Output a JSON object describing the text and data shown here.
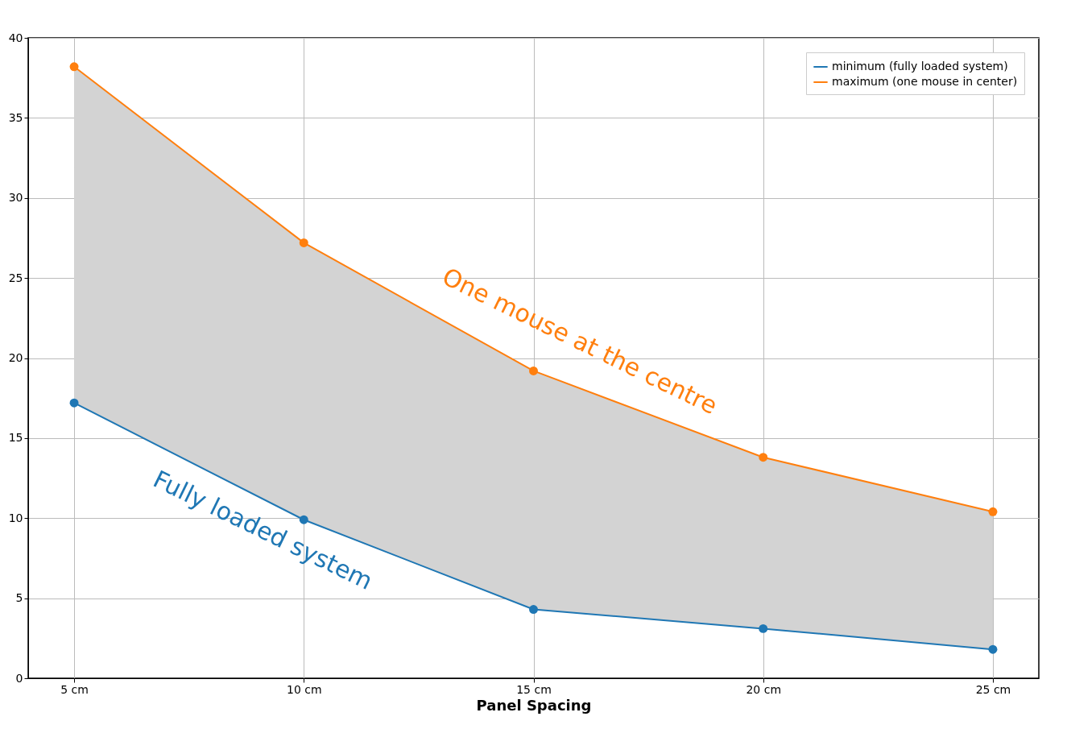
{
  "chart_data": {
    "type": "line",
    "xlabel": "Panel Spacing",
    "categories": [
      "5 cm",
      "10 cm",
      "15 cm",
      "20 cm",
      "25 cm"
    ],
    "series": [
      {
        "name": "minimum (fully loaded system)",
        "color": "#1f77b4",
        "values": [
          17.2,
          9.9,
          4.3,
          3.1,
          1.8
        ]
      },
      {
        "name": "maximum (one mouse in center)",
        "color": "#ff7f0e",
        "values": [
          38.2,
          27.2,
          19.2,
          13.8,
          10.4
        ],
        "lower": [
          17.2,
          9.9,
          4.3,
          3.1,
          1.8
        ],
        "upper": [
          38.2,
          27.2,
          19.2,
          13.8,
          10.4
        ]
      }
    ],
    "annotations": [
      "Fully loaded system",
      "One mouse at the centre"
    ],
    "ylim": [
      0,
      40
    ],
    "yticks": [
      0,
      5,
      10,
      15,
      20,
      25,
      30,
      35,
      40
    ],
    "grid": true,
    "legend": "top right",
    "marker": "circle",
    "line_style": "solid"
  }
}
